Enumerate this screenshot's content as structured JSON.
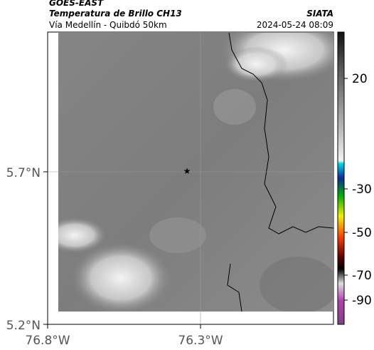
{
  "header": {
    "source": "GOES-EAST",
    "product": "Temperatura de Brillo CH13",
    "route": "Vía Medellín - Quibdó 50km",
    "organization": "SIATA",
    "datetime": "2024-05-24 08:09"
  },
  "axes": {
    "lat_labels": [
      "5.7°N",
      "5.2°N"
    ],
    "lon_labels": [
      "76.8°W",
      "76.3°W"
    ]
  },
  "colorbar": {
    "ticks": [
      20,
      -30,
      -50,
      -70,
      -90
    ]
  }
}
